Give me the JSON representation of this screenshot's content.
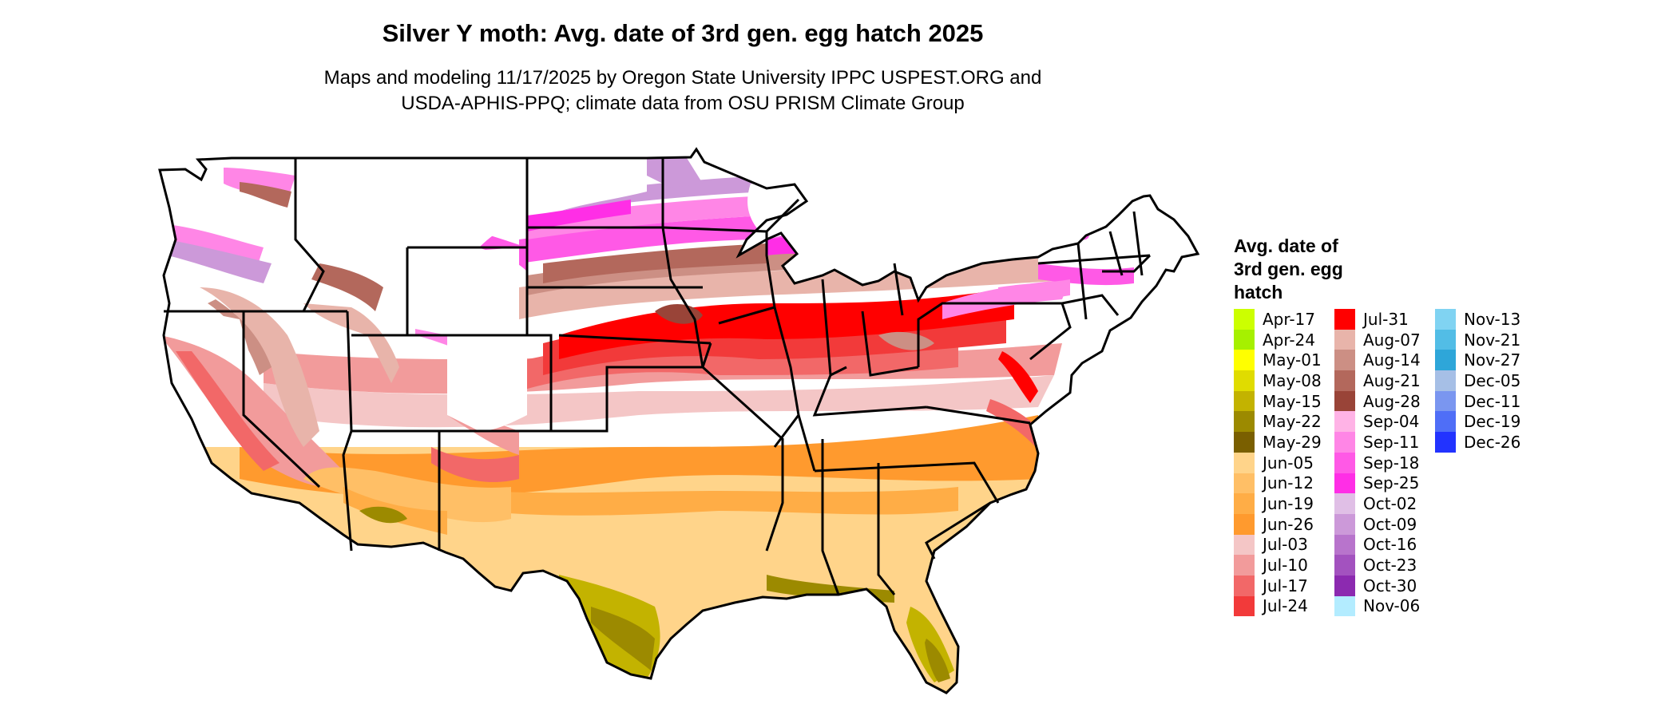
{
  "title": "Silver Y moth: Avg. date of 3rd gen. egg hatch 2025",
  "subtitle": {
    "line1": "Maps and modeling 11/17/2025 by Oregon State University IPPC USPEST.ORG and",
    "line2": "USDA-APHIS-PPQ; climate data from OSU PRISM Climate Group"
  },
  "legend": {
    "title_lines": [
      "Avg. date of",
      "3rd gen. egg",
      "hatch"
    ],
    "columns": [
      [
        {
          "label": "Apr-17",
          "color": "#ccff00"
        },
        {
          "label": "Apr-24",
          "color": "#a6f000"
        },
        {
          "label": "May-01",
          "color": "#ffff00"
        },
        {
          "label": "May-08",
          "color": "#e0dc00"
        },
        {
          "label": "May-15",
          "color": "#c3b300"
        },
        {
          "label": "May-22",
          "color": "#9c8a00"
        },
        {
          "label": "May-29",
          "color": "#7a5f00"
        },
        {
          "label": "Jun-05",
          "color": "#ffd48a"
        },
        {
          "label": "Jun-12",
          "color": "#ffbf66"
        },
        {
          "label": "Jun-19",
          "color": "#ffad46"
        },
        {
          "label": "Jun-26",
          "color": "#ff9a2e"
        },
        {
          "label": "Jul-03",
          "color": "#f4c6c6"
        },
        {
          "label": "Jul-10",
          "color": "#f29b9b"
        },
        {
          "label": "Jul-17",
          "color": "#f26868"
        },
        {
          "label": "Jul-24",
          "color": "#f23a3a"
        }
      ],
      [
        {
          "label": "Jul-31",
          "color": "#ff0000"
        },
        {
          "label": "Aug-07",
          "color": "#e8b4aa"
        },
        {
          "label": "Aug-14",
          "color": "#cc8f84"
        },
        {
          "label": "Aug-21",
          "color": "#b3685c"
        },
        {
          "label": "Aug-28",
          "color": "#994438"
        },
        {
          "label": "Sep-04",
          "color": "#ffb3e6"
        },
        {
          "label": "Sep-11",
          "color": "#ff86e6"
        },
        {
          "label": "Sep-18",
          "color": "#ff59e6"
        },
        {
          "label": "Sep-25",
          "color": "#ff2ee6"
        },
        {
          "label": "Oct-02",
          "color": "#e0bfe6"
        },
        {
          "label": "Oct-09",
          "color": "#cc99d9"
        },
        {
          "label": "Oct-16",
          "color": "#b874cc"
        },
        {
          "label": "Oct-23",
          "color": "#a352bf"
        },
        {
          "label": "Oct-30",
          "color": "#8c2ab0"
        },
        {
          "label": "Nov-06",
          "color": "#b3ecff"
        }
      ],
      [
        {
          "label": "Nov-13",
          "color": "#80d3f2"
        },
        {
          "label": "Nov-21",
          "color": "#52bde6"
        },
        {
          "label": "Nov-27",
          "color": "#2ea6d9"
        },
        {
          "label": "Dec-05",
          "color": "#a6bfe6"
        },
        {
          "label": "Dec-11",
          "color": "#7a96f0"
        },
        {
          "label": "Dec-19",
          "color": "#4f6ef7"
        },
        {
          "label": "Dec-26",
          "color": "#2233ff"
        }
      ]
    ]
  }
}
